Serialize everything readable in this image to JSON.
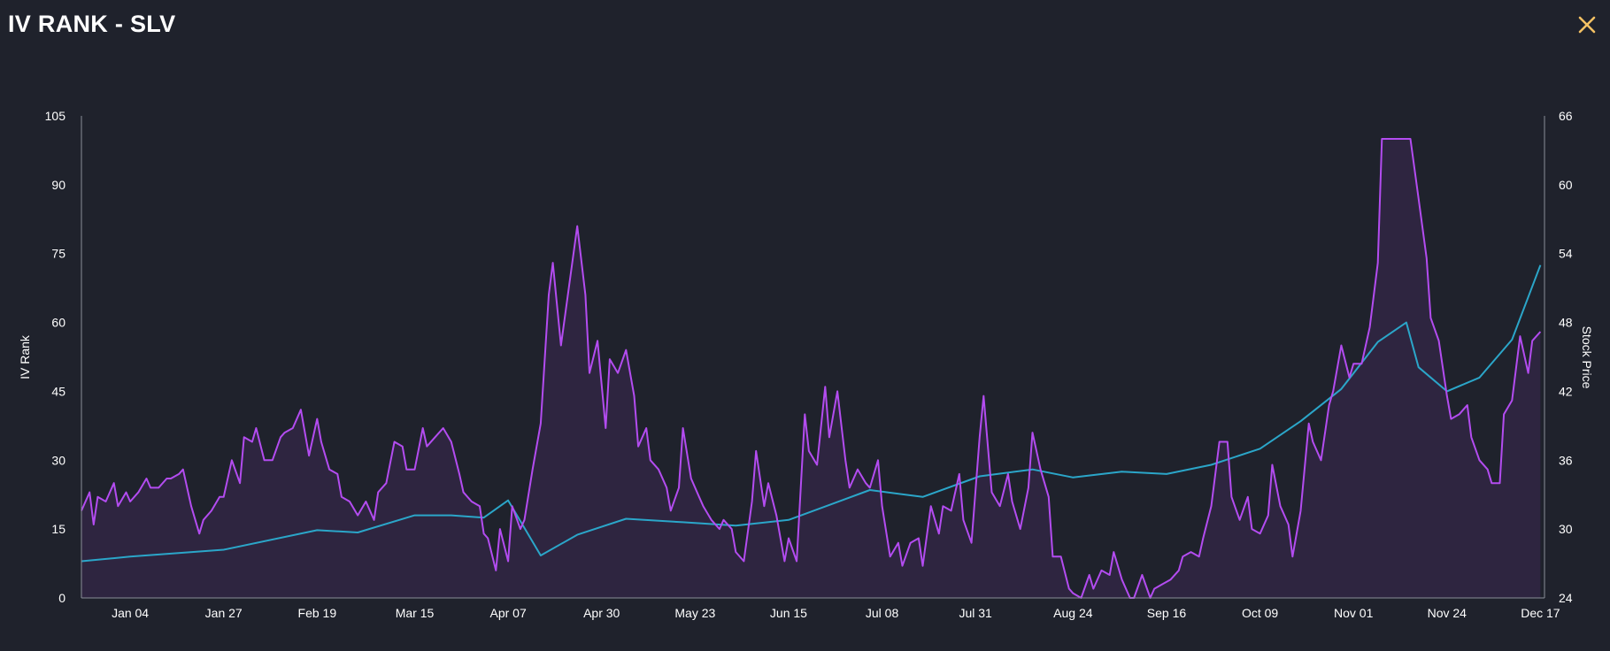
{
  "header": {
    "title": "IV RANK - SLV",
    "close_icon": "close-icon"
  },
  "colors": {
    "background": "#1f222c",
    "iv_line": "#b34cf0",
    "iv_fill": "#2e2540",
    "price_line": "#2ba6c9",
    "axis": "#8a8f99",
    "text": "#ffffff",
    "close": "#f3c164"
  },
  "chart_data": {
    "type": "line",
    "y_left": {
      "label": "IV Rank",
      "min": 0,
      "max": 105,
      "ticks": [
        0,
        15,
        30,
        45,
        60,
        75,
        90,
        105
      ]
    },
    "y_right": {
      "label": "Stock Price",
      "min": 24,
      "max": 66,
      "ticks": [
        24,
        30,
        36,
        42,
        48,
        54,
        60,
        66
      ]
    },
    "x_range": [
      "2024-12-23",
      "2025-12-18"
    ],
    "x_ticks": [
      {
        "date": "2025-01-04",
        "label": "Jan 04"
      },
      {
        "date": "2025-01-27",
        "label": "Jan 27"
      },
      {
        "date": "2025-02-19",
        "label": "Feb 19"
      },
      {
        "date": "2025-03-15",
        "label": "Mar 15"
      },
      {
        "date": "2025-04-07",
        "label": "Apr 07"
      },
      {
        "date": "2025-04-30",
        "label": "Apr 30"
      },
      {
        "date": "2025-05-23",
        "label": "May 23"
      },
      {
        "date": "2025-06-15",
        "label": "Jun 15"
      },
      {
        "date": "2025-07-08",
        "label": "Jul 08"
      },
      {
        "date": "2025-07-31",
        "label": "Jul 31"
      },
      {
        "date": "2025-08-24",
        "label": "Aug 24"
      },
      {
        "date": "2025-09-16",
        "label": "Sep 16"
      },
      {
        "date": "2025-10-09",
        "label": "Oct 09"
      },
      {
        "date": "2025-11-01",
        "label": "Nov 01"
      },
      {
        "date": "2025-11-24",
        "label": "Nov 24"
      },
      {
        "date": "2025-12-17",
        "label": "Dec 17"
      }
    ],
    "series": [
      {
        "name": "IV Rank",
        "axis": "left",
        "points": [
          [
            "2024-12-23",
            19
          ],
          [
            "2024-12-25",
            23
          ],
          [
            "2024-12-26",
            16
          ],
          [
            "2024-12-27",
            22
          ],
          [
            "2024-12-29",
            21
          ],
          [
            "2024-12-31",
            25
          ],
          [
            "2025-01-01",
            20
          ],
          [
            "2025-01-03",
            23
          ],
          [
            "2025-01-04",
            21
          ],
          [
            "2025-01-06",
            23
          ],
          [
            "2025-01-08",
            26
          ],
          [
            "2025-01-09",
            24
          ],
          [
            "2025-01-11",
            24
          ],
          [
            "2025-01-13",
            26
          ],
          [
            "2025-01-14",
            26
          ],
          [
            "2025-01-16",
            27
          ],
          [
            "2025-01-17",
            28
          ],
          [
            "2025-01-19",
            20
          ],
          [
            "2025-01-21",
            14
          ],
          [
            "2025-01-22",
            17
          ],
          [
            "2025-01-24",
            19
          ],
          [
            "2025-01-26",
            22
          ],
          [
            "2025-01-27",
            22
          ],
          [
            "2025-01-29",
            30
          ],
          [
            "2025-01-31",
            25
          ],
          [
            "2025-02-01",
            35
          ],
          [
            "2025-02-03",
            34
          ],
          [
            "2025-02-04",
            37
          ],
          [
            "2025-02-06",
            30
          ],
          [
            "2025-02-08",
            30
          ],
          [
            "2025-02-10",
            35
          ],
          [
            "2025-02-11",
            36
          ],
          [
            "2025-02-13",
            37
          ],
          [
            "2025-02-15",
            41
          ],
          [
            "2025-02-17",
            31
          ],
          [
            "2025-02-19",
            39
          ],
          [
            "2025-02-20",
            34
          ],
          [
            "2025-02-22",
            28
          ],
          [
            "2025-02-24",
            27
          ],
          [
            "2025-02-25",
            22
          ],
          [
            "2025-02-27",
            21
          ],
          [
            "2025-03-01",
            18
          ],
          [
            "2025-03-03",
            21
          ],
          [
            "2025-03-05",
            17
          ],
          [
            "2025-03-06",
            23
          ],
          [
            "2025-03-08",
            25
          ],
          [
            "2025-03-10",
            34
          ],
          [
            "2025-03-12",
            33
          ],
          [
            "2025-03-13",
            28
          ],
          [
            "2025-03-15",
            28
          ],
          [
            "2025-03-17",
            37
          ],
          [
            "2025-03-18",
            33
          ],
          [
            "2025-03-20",
            35
          ],
          [
            "2025-03-22",
            37
          ],
          [
            "2025-03-24",
            34
          ],
          [
            "2025-03-26",
            27
          ],
          [
            "2025-03-27",
            23
          ],
          [
            "2025-03-29",
            21
          ],
          [
            "2025-03-31",
            20
          ],
          [
            "2025-04-01",
            14
          ],
          [
            "2025-04-02",
            13
          ],
          [
            "2025-04-04",
            6
          ],
          [
            "2025-04-05",
            15
          ],
          [
            "2025-04-07",
            8
          ],
          [
            "2025-04-08",
            20
          ],
          [
            "2025-04-10",
            15
          ],
          [
            "2025-04-11",
            17
          ],
          [
            "2025-04-13",
            28
          ],
          [
            "2025-04-15",
            38
          ],
          [
            "2025-04-17",
            66
          ],
          [
            "2025-04-18",
            73
          ],
          [
            "2025-04-20",
            55
          ],
          [
            "2025-04-22",
            68
          ],
          [
            "2025-04-24",
            81
          ],
          [
            "2025-04-26",
            66
          ],
          [
            "2025-04-27",
            49
          ],
          [
            "2025-04-29",
            56
          ],
          [
            "2025-05-01",
            37
          ],
          [
            "2025-05-02",
            52
          ],
          [
            "2025-05-04",
            49
          ],
          [
            "2025-05-06",
            54
          ],
          [
            "2025-05-08",
            44
          ],
          [
            "2025-05-09",
            33
          ],
          [
            "2025-05-11",
            37
          ],
          [
            "2025-05-12",
            30
          ],
          [
            "2025-05-14",
            28
          ],
          [
            "2025-05-16",
            24
          ],
          [
            "2025-05-17",
            19
          ],
          [
            "2025-05-19",
            24
          ],
          [
            "2025-05-20",
            37
          ],
          [
            "2025-05-22",
            26
          ],
          [
            "2025-05-24",
            22
          ],
          [
            "2025-05-25",
            20
          ],
          [
            "2025-05-27",
            17
          ],
          [
            "2025-05-29",
            15
          ],
          [
            "2025-05-30",
            17
          ],
          [
            "2025-06-01",
            15
          ],
          [
            "2025-06-02",
            10
          ],
          [
            "2025-06-04",
            8
          ],
          [
            "2025-06-06",
            21
          ],
          [
            "2025-06-07",
            32
          ],
          [
            "2025-06-09",
            20
          ],
          [
            "2025-06-10",
            25
          ],
          [
            "2025-06-12",
            18
          ],
          [
            "2025-06-14",
            8
          ],
          [
            "2025-06-15",
            13
          ],
          [
            "2025-06-17",
            8
          ],
          [
            "2025-06-19",
            40
          ],
          [
            "2025-06-20",
            32
          ],
          [
            "2025-06-22",
            29
          ],
          [
            "2025-06-24",
            46
          ],
          [
            "2025-06-25",
            35
          ],
          [
            "2025-06-27",
            45
          ],
          [
            "2025-06-29",
            30
          ],
          [
            "2025-06-30",
            24
          ],
          [
            "2025-07-02",
            28
          ],
          [
            "2025-07-04",
            25
          ],
          [
            "2025-07-05",
            24
          ],
          [
            "2025-07-07",
            30
          ],
          [
            "2025-07-08",
            20
          ],
          [
            "2025-07-10",
            9
          ],
          [
            "2025-07-12",
            12
          ],
          [
            "2025-07-13",
            7
          ],
          [
            "2025-07-15",
            12
          ],
          [
            "2025-07-17",
            13
          ],
          [
            "2025-07-18",
            7
          ],
          [
            "2025-07-20",
            20
          ],
          [
            "2025-07-22",
            14
          ],
          [
            "2025-07-23",
            20
          ],
          [
            "2025-07-25",
            19
          ],
          [
            "2025-07-27",
            27
          ],
          [
            "2025-07-28",
            17
          ],
          [
            "2025-07-30",
            12
          ],
          [
            "2025-08-01",
            35
          ],
          [
            "2025-08-02",
            44
          ],
          [
            "2025-08-04",
            23
          ],
          [
            "2025-08-06",
            20
          ],
          [
            "2025-08-08",
            27
          ],
          [
            "2025-08-09",
            21
          ],
          [
            "2025-08-11",
            15
          ],
          [
            "2025-08-13",
            24
          ],
          [
            "2025-08-14",
            36
          ],
          [
            "2025-08-16",
            28
          ],
          [
            "2025-08-18",
            22
          ],
          [
            "2025-08-19",
            9
          ],
          [
            "2025-08-21",
            9
          ],
          [
            "2025-08-23",
            2
          ],
          [
            "2025-08-24",
            1
          ],
          [
            "2025-08-26",
            0
          ],
          [
            "2025-08-28",
            5
          ],
          [
            "2025-08-29",
            2
          ],
          [
            "2025-08-31",
            6
          ],
          [
            "2025-09-02",
            5
          ],
          [
            "2025-09-03",
            10
          ],
          [
            "2025-09-05",
            4
          ],
          [
            "2025-09-07",
            0
          ],
          [
            "2025-09-08",
            0
          ],
          [
            "2025-09-10",
            5
          ],
          [
            "2025-09-12",
            0
          ],
          [
            "2025-09-13",
            2
          ],
          [
            "2025-09-15",
            3
          ],
          [
            "2025-09-17",
            4
          ],
          [
            "2025-09-19",
            6
          ],
          [
            "2025-09-20",
            9
          ],
          [
            "2025-09-22",
            10
          ],
          [
            "2025-09-24",
            9
          ],
          [
            "2025-09-25",
            13
          ],
          [
            "2025-09-27",
            20
          ],
          [
            "2025-09-29",
            34
          ],
          [
            "2025-10-01",
            34
          ],
          [
            "2025-10-02",
            22
          ],
          [
            "2025-10-04",
            17
          ],
          [
            "2025-10-06",
            22
          ],
          [
            "2025-10-07",
            15
          ],
          [
            "2025-10-09",
            14
          ],
          [
            "2025-10-11",
            18
          ],
          [
            "2025-10-12",
            29
          ],
          [
            "2025-10-14",
            20
          ],
          [
            "2025-10-16",
            16
          ],
          [
            "2025-10-17",
            9
          ],
          [
            "2025-10-19",
            19
          ],
          [
            "2025-10-21",
            38
          ],
          [
            "2025-10-22",
            34
          ],
          [
            "2025-10-24",
            30
          ],
          [
            "2025-10-26",
            42
          ],
          [
            "2025-10-27",
            45
          ],
          [
            "2025-10-29",
            55
          ],
          [
            "2025-10-31",
            48
          ],
          [
            "2025-11-01",
            51
          ],
          [
            "2025-11-03",
            51
          ],
          [
            "2025-11-05",
            59
          ],
          [
            "2025-11-07",
            73
          ],
          [
            "2025-11-08",
            100
          ],
          [
            "2025-11-10",
            100
          ],
          [
            "2025-11-12",
            100
          ],
          [
            "2025-11-14",
            100
          ],
          [
            "2025-11-15",
            100
          ],
          [
            "2025-11-17",
            87
          ],
          [
            "2025-11-19",
            74
          ],
          [
            "2025-11-20",
            61
          ],
          [
            "2025-11-22",
            56
          ],
          [
            "2025-11-24",
            44
          ],
          [
            "2025-11-25",
            39
          ],
          [
            "2025-11-27",
            40
          ],
          [
            "2025-11-29",
            42
          ],
          [
            "2025-11-30",
            35
          ],
          [
            "2025-12-02",
            30
          ],
          [
            "2025-12-04",
            28
          ],
          [
            "2025-12-05",
            25
          ],
          [
            "2025-12-07",
            25
          ],
          [
            "2025-12-08",
            40
          ],
          [
            "2025-12-10",
            43
          ],
          [
            "2025-12-12",
            57
          ],
          [
            "2025-12-14",
            49
          ],
          [
            "2025-12-15",
            56
          ],
          [
            "2025-12-17",
            58
          ]
        ]
      },
      {
        "name": "Stock Price",
        "axis": "right",
        "points": []
      }
    ]
  }
}
